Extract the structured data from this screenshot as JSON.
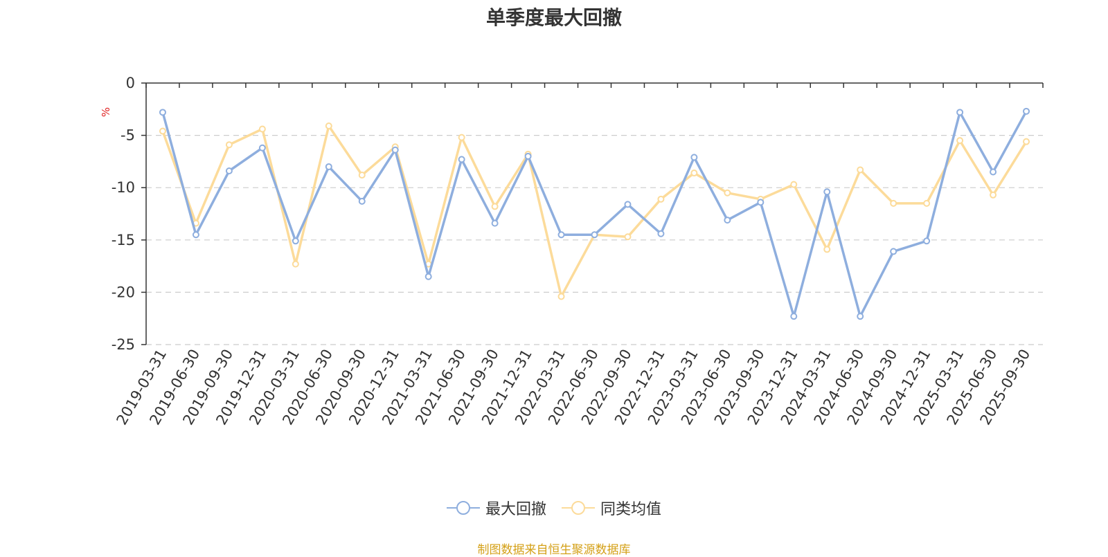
{
  "chart_data": {
    "type": "line",
    "title": "单季度最大回撤",
    "ylabel": "%",
    "xlabel": "",
    "ylim": [
      -25,
      0
    ],
    "yticks": [
      0,
      -5,
      -10,
      -15,
      -20,
      -25
    ],
    "grid": "y-dashed",
    "legend_position": "bottom-center",
    "categories": [
      "2019-03-31",
      "2019-06-30",
      "2019-09-30",
      "2019-12-31",
      "2020-03-31",
      "2020-06-30",
      "2020-09-30",
      "2020-12-31",
      "2021-03-31",
      "2021-06-30",
      "2021-09-30",
      "2021-12-31",
      "2022-03-31",
      "2022-06-30",
      "2022-09-30",
      "2022-12-31",
      "2023-03-31",
      "2023-06-30",
      "2023-09-30",
      "2023-12-31",
      "2024-03-31",
      "2024-06-30",
      "2024-09-30",
      "2024-12-31",
      "2025-03-31",
      "2025-06-30",
      "2025-09-30"
    ],
    "series": [
      {
        "name": "最大回撤",
        "color": "#8eaede",
        "values": [
          -2.8,
          -14.5,
          -8.4,
          -6.2,
          -15.1,
          -8.0,
          -11.3,
          -6.4,
          -18.5,
          -7.3,
          -13.4,
          -7.0,
          -14.5,
          -14.5,
          -11.6,
          -14.4,
          -7.1,
          -13.1,
          -11.4,
          -22.3,
          -10.4,
          -22.3,
          -16.1,
          -15.1,
          -2.8,
          -8.5,
          -2.7
        ]
      },
      {
        "name": "同类均值",
        "color": "#fcdb9a",
        "values": [
          -4.6,
          -13.4,
          -5.9,
          -4.4,
          -17.3,
          -4.1,
          -8.8,
          -6.1,
          -17.3,
          -5.2,
          -11.8,
          -6.8,
          -20.4,
          -14.5,
          -14.7,
          -11.1,
          -8.6,
          -10.5,
          -11.1,
          -9.7,
          -15.9,
          -8.3,
          -11.5,
          -11.5,
          -5.5,
          -10.7,
          -5.6
        ]
      }
    ]
  },
  "footer": {
    "source": "制图数据来自恒生聚源数据库"
  }
}
